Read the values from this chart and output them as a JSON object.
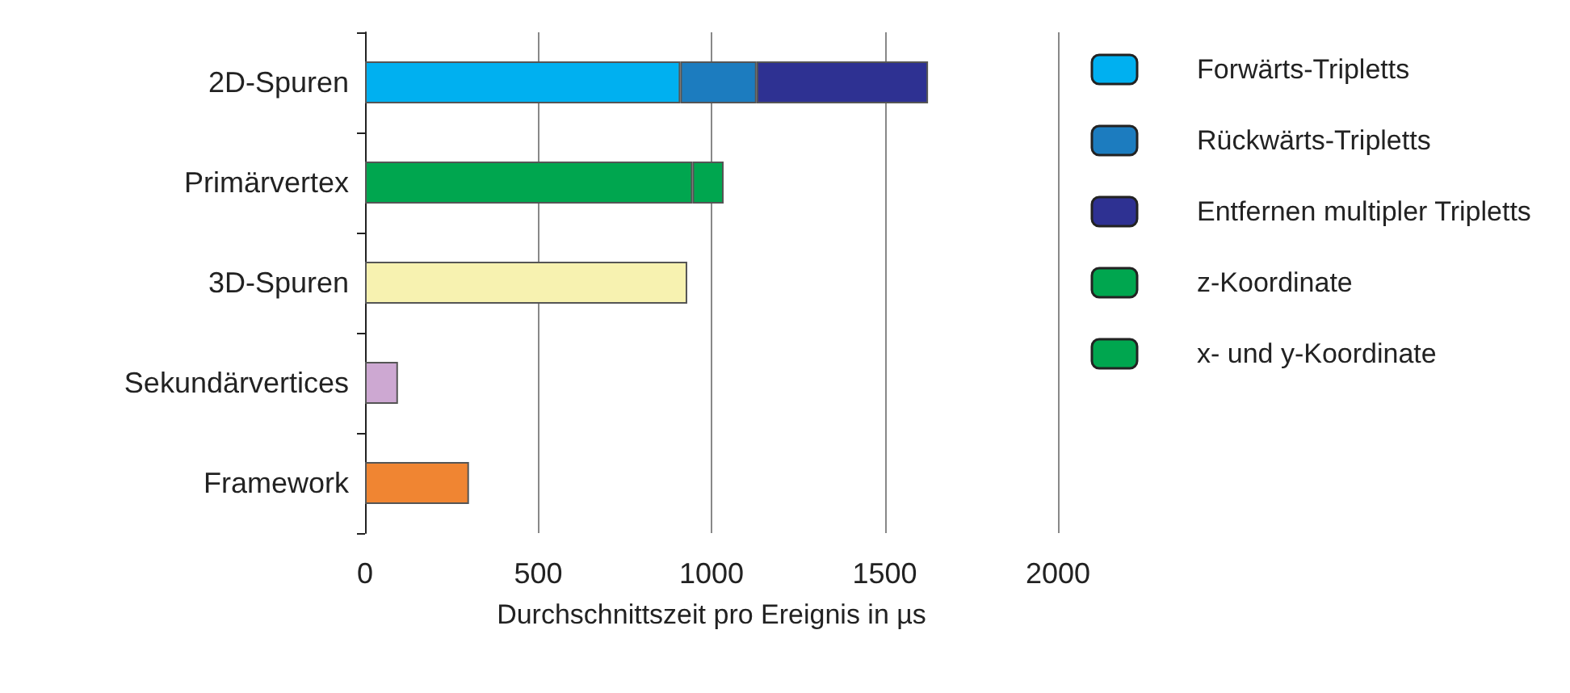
{
  "chart_data": {
    "type": "bar",
    "orientation": "horizontal",
    "stacked": true,
    "xlabel": "Durchschnittszeit pro Ereignis in µs",
    "categories": [
      "2D-Spuren",
      "Primärvertex",
      "3D-Spuren",
      "Sekundärvertices",
      "Framework"
    ],
    "series": [
      {
        "name": "Forwärts-Tripletts",
        "color": "#00b0f0",
        "values": [
          910,
          null,
          null,
          null,
          null
        ]
      },
      {
        "name": "Rückwärts-Tripletts",
        "color": "#1c7cbf",
        "values": [
          220,
          null,
          null,
          null,
          null
        ]
      },
      {
        "name": "Entfernen multipler Tripletts",
        "color": "#2e3192",
        "values": [
          495,
          null,
          null,
          null,
          null
        ]
      },
      {
        "name": "z-Koordinate",
        "color": "#00a64f",
        "values": [
          null,
          945,
          null,
          null,
          null
        ]
      },
      {
        "name": "x- und y-Koordinate",
        "color": "#00a64f",
        "values": [
          null,
          90,
          null,
          null,
          null
        ]
      },
      {
        "colors": [
          null,
          null,
          "#f7f2b0",
          "#cda8d2",
          "#f08532"
        ],
        "values": [
          null,
          null,
          930,
          95,
          300
        ]
      }
    ],
    "xlim": [
      0,
      2000
    ],
    "xticks": [
      0,
      500,
      1000,
      1500,
      2000
    ],
    "grid": "x",
    "legend": "right"
  }
}
